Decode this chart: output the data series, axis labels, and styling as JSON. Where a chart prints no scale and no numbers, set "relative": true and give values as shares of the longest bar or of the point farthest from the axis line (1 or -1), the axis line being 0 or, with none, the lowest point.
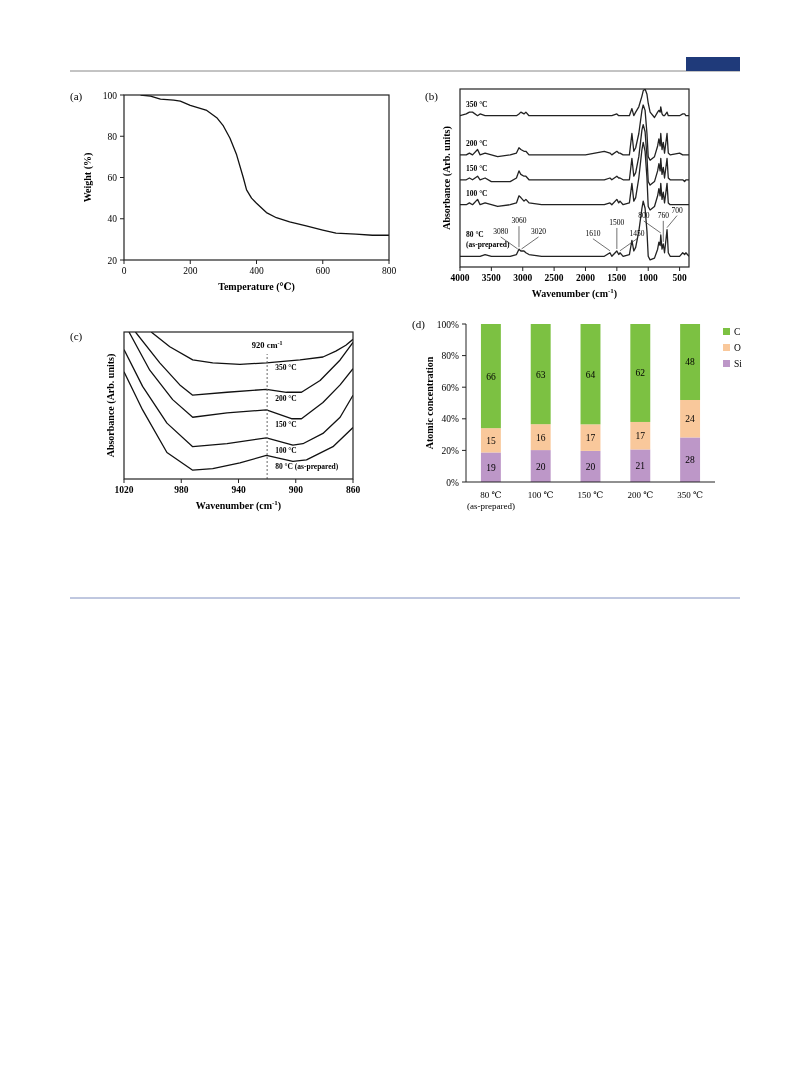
{
  "chart_data": [
    {
      "type": "line",
      "title": "(a)",
      "xlabel": "Temperature (℃)",
      "ylabel": "Weight (%)",
      "xlim": [
        0,
        800
      ],
      "xticks": [
        0,
        200,
        400,
        600,
        800
      ],
      "ylim": [
        20,
        100
      ],
      "yticks": [
        20,
        40,
        60,
        80,
        100
      ],
      "x": [
        50,
        80,
        110,
        150,
        170,
        200,
        250,
        280,
        300,
        320,
        340,
        360,
        370,
        385,
        400,
        430,
        460,
        500,
        550,
        600,
        640,
        700,
        750,
        800
      ],
      "values": [
        100,
        99.5,
        98,
        97.5,
        97,
        95,
        92.5,
        89,
        85,
        79,
        71,
        60,
        54,
        50,
        47.5,
        43,
        40.5,
        38.5,
        36.5,
        34.5,
        33,
        32.5,
        32,
        32
      ],
      "color": "#111111"
    },
    {
      "type": "line",
      "relative": true,
      "title": "(b)",
      "xlabel": "Wavenumber (cm$^{-1}$)",
      "ylabel": "Absorbance (Arb. units)",
      "xlim": [
        4000,
        350
      ],
      "xticks": [
        4000,
        3500,
        3000,
        2500,
        2000,
        1500,
        1000,
        500
      ],
      "x": [
        4000,
        3900,
        3850,
        3800,
        3720,
        3680,
        3600,
        3500,
        3400,
        3200,
        3100,
        3060,
        3030,
        2980,
        2950,
        2900,
        2700,
        2000,
        1700,
        1610,
        1580,
        1500,
        1470,
        1450,
        1400,
        1300,
        1260,
        1230,
        1200,
        1150,
        1100,
        1080,
        1050,
        1020,
        1000,
        970,
        900,
        850,
        830,
        810,
        800,
        780,
        760,
        740,
        700,
        680,
        650,
        500,
        450,
        420,
        400,
        350
      ],
      "series": [
        {
          "name": "350 °C",
          "color": "#222222",
          "values": [
            0.85,
            0.86,
            0.87,
            0.87,
            0.85,
            0.86,
            0.85,
            0.85,
            0.85,
            0.85,
            0.85,
            0.86,
            0.87,
            0.86,
            0.87,
            0.85,
            0.85,
            0.85,
            0.85,
            0.85,
            0.85,
            0.86,
            0.85,
            0.85,
            0.85,
            0.85,
            0.89,
            0.85,
            0.87,
            0.9,
            0.96,
            0.99,
            1.0,
            0.97,
            0.92,
            0.87,
            0.84,
            0.87,
            0.88,
            0.87,
            0.9,
            0.86,
            0.85,
            0.85,
            0.87,
            0.85,
            0.85,
            0.85,
            0.86,
            0.86,
            0.85,
            0.85
          ]
        },
        {
          "name": "200 °C",
          "color": "#222222",
          "values": [
            0.63,
            0.63,
            0.64,
            0.63,
            0.66,
            0.63,
            0.64,
            0.63,
            0.62,
            0.63,
            0.64,
            0.67,
            0.66,
            0.65,
            0.65,
            0.63,
            0.63,
            0.63,
            0.65,
            0.64,
            0.63,
            0.65,
            0.64,
            0.64,
            0.63,
            0.63,
            0.75,
            0.65,
            0.67,
            0.75,
            0.88,
            0.91,
            0.88,
            0.75,
            0.62,
            0.6,
            0.62,
            0.68,
            0.72,
            0.68,
            0.75,
            0.66,
            0.7,
            0.64,
            0.75,
            0.64,
            0.63,
            0.64,
            0.63,
            0.63,
            0.63,
            0.63
          ]
        },
        {
          "name": "150 °C",
          "color": "#222222",
          "values": [
            0.49,
            0.49,
            0.5,
            0.49,
            0.51,
            0.49,
            0.5,
            0.48,
            0.48,
            0.48,
            0.5,
            0.54,
            0.52,
            0.51,
            0.51,
            0.49,
            0.49,
            0.49,
            0.49,
            0.5,
            0.49,
            0.51,
            0.5,
            0.5,
            0.49,
            0.49,
            0.61,
            0.51,
            0.53,
            0.62,
            0.77,
            0.8,
            0.76,
            0.62,
            0.48,
            0.46,
            0.48,
            0.54,
            0.58,
            0.54,
            0.61,
            0.52,
            0.56,
            0.5,
            0.61,
            0.5,
            0.49,
            0.49,
            0.49,
            0.48,
            0.49,
            0.49
          ]
        },
        {
          "name": "100 °C",
          "color": "#222222",
          "values": [
            0.35,
            0.35,
            0.36,
            0.35,
            0.38,
            0.35,
            0.36,
            0.35,
            0.34,
            0.35,
            0.36,
            0.4,
            0.39,
            0.37,
            0.38,
            0.36,
            0.35,
            0.35,
            0.35,
            0.36,
            0.35,
            0.38,
            0.36,
            0.37,
            0.35,
            0.36,
            0.47,
            0.37,
            0.39,
            0.5,
            0.66,
            0.7,
            0.65,
            0.5,
            0.34,
            0.32,
            0.34,
            0.4,
            0.44,
            0.4,
            0.47,
            0.38,
            0.42,
            0.36,
            0.47,
            0.36,
            0.35,
            0.35,
            0.35,
            0.35,
            0.35,
            0.35
          ]
        },
        {
          "name": "80 °C (as-prepared)",
          "color": "#222222",
          "values": [
            0.06,
            0.06,
            0.06,
            0.06,
            0.06,
            0.06,
            0.07,
            0.06,
            0.06,
            0.06,
            0.07,
            0.1,
            0.09,
            0.09,
            0.08,
            0.07,
            0.06,
            0.06,
            0.06,
            0.08,
            0.06,
            0.09,
            0.07,
            0.08,
            0.06,
            0.07,
            0.15,
            0.09,
            0.11,
            0.2,
            0.33,
            0.37,
            0.33,
            0.2,
            0.06,
            0.04,
            0.05,
            0.1,
            0.14,
            0.12,
            0.18,
            0.1,
            0.13,
            0.08,
            0.21,
            0.08,
            0.06,
            0.06,
            0.08,
            0.07,
            0.08,
            0.06
          ]
        }
      ],
      "annotations": [
        {
          "text": "3080",
          "x": 3080,
          "y": 0.09
        },
        {
          "text": "3060",
          "x": 3060,
          "y": 0.1
        },
        {
          "text": "3020",
          "x": 3020,
          "y": 0.09
        },
        {
          "text": "1610",
          "x": 1610,
          "y": 0.08
        },
        {
          "text": "1500",
          "x": 1500,
          "y": 0.09
        },
        {
          "text": "1450",
          "x": 1450,
          "y": 0.08
        },
        {
          "text": "800",
          "x": 800,
          "y": 0.18
        },
        {
          "text": "760",
          "x": 760,
          "y": 0.13
        },
        {
          "text": "700",
          "x": 700,
          "y": 0.21
        }
      ]
    },
    {
      "type": "line",
      "relative": true,
      "title": "(c)",
      "xlabel": "Wavenumber (cm$^{-1}$)",
      "ylabel": "Absorbance (Arb. units)",
      "xlim": [
        1020,
        860
      ],
      "xticks": [
        1020,
        980,
        940,
        900,
        860
      ],
      "series": [
        {
          "name": "350 °C",
          "color": "#111111",
          "x": [
            1001,
            988,
            972,
            958,
            939,
            920.5,
            897,
            881,
            872,
            865,
            860
          ],
          "values": [
            1.0,
            0.9,
            0.81,
            0.79,
            0.78,
            0.79,
            0.81,
            0.83,
            0.87,
            0.91,
            0.95
          ]
        },
        {
          "name": "200 °C",
          "color": "#111111",
          "x": [
            1012,
            995,
            981,
            972,
            948,
            920.5,
            906.5,
            896,
            883,
            869,
            860
          ],
          "values": [
            1.0,
            0.79,
            0.64,
            0.57,
            0.59,
            0.61,
            0.59,
            0.59,
            0.67,
            0.81,
            0.93
          ]
        },
        {
          "name": "150 °C",
          "color": "#111111",
          "x": [
            1016.5,
            1002,
            986,
            972,
            948,
            920.5,
            903,
            896,
            881,
            869,
            860
          ],
          "values": [
            1.0,
            0.74,
            0.54,
            0.42,
            0.45,
            0.47,
            0.41,
            0.41,
            0.52,
            0.64,
            0.75
          ]
        },
        {
          "name": "100 °C",
          "color": "#111111",
          "x": [
            1020,
            1007,
            990,
            972,
            948,
            920.5,
            902,
            895,
            881,
            869,
            860
          ],
          "values": [
            0.88,
            0.63,
            0.38,
            0.22,
            0.24,
            0.28,
            0.23,
            0.24,
            0.31,
            0.42,
            0.57
          ]
        },
        {
          "name": "80 °C (as-prepared)",
          "color": "#111111",
          "x": [
            1020,
            1007,
            990,
            972,
            958,
            939,
            920.5,
            902,
            892.5,
            874,
            860
          ],
          "values": [
            0.73,
            0.47,
            0.18,
            0.06,
            0.07,
            0.11,
            0.16,
            0.12,
            0.13,
            0.22,
            0.35
          ]
        }
      ],
      "ref_lines": [
        {
          "axis": "x",
          "value": 920,
          "label": "920 cm$^{-1}$",
          "line_style": "dotted",
          "color": "#666666"
        }
      ]
    },
    {
      "type": "bar",
      "stacked": true,
      "title": "(d)",
      "ylabel": "Atomic concentration",
      "categories": [
        "80 ℃ (as-prepared)",
        "100 ℃",
        "150 ℃",
        "200 ℃",
        "350 ℃"
      ],
      "ylim": [
        0,
        100
      ],
      "yticks": [
        {
          "value": 0,
          "label": "0%"
        },
        {
          "value": 20,
          "label": "20%"
        },
        {
          "value": 40,
          "label": "40%"
        },
        {
          "value": 60,
          "label": "60%"
        },
        {
          "value": 80,
          "label": "80%"
        },
        {
          "value": 100,
          "label": "100%"
        }
      ],
      "legend": "top right",
      "series": [
        {
          "name": "Si",
          "color": "#bd97c8",
          "values": [
            18.7,
            20.2,
            19.7,
            20.6,
            28.2
          ],
          "value_labels": [
            "19",
            "20",
            "20",
            "21",
            "28"
          ]
        },
        {
          "name": "O",
          "color": "#f9c89b",
          "values": [
            15.4,
            16.4,
            16.8,
            17.4,
            23.7
          ],
          "value_labels": [
            "15",
            "16",
            "17",
            "17",
            "24"
          ]
        },
        {
          "name": "C",
          "color": "#7cc142",
          "values": [
            65.9,
            63.4,
            63.5,
            62.0,
            48.1
          ],
          "value_labels": [
            "66",
            "63",
            "64",
            "62",
            "48"
          ]
        }
      ]
    }
  ]
}
